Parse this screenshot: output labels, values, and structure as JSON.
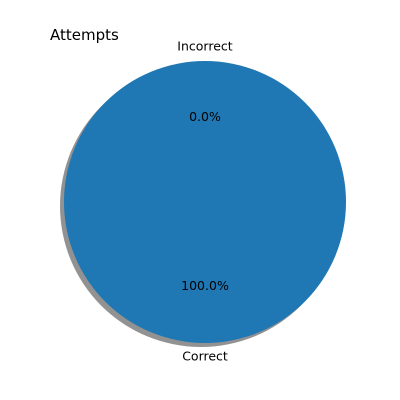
{
  "chart_data": {
    "type": "pie",
    "title": "Attempts",
    "slices": [
      {
        "label": "Correct",
        "value": 100.0,
        "percent_label": "100.0%",
        "color": "#1f77b4"
      },
      {
        "label": "Incorrect",
        "value": 0.0,
        "percent_label": "0.0%",
        "color": "#ff7f0e"
      }
    ],
    "shadow": true,
    "start_angle_deg": 90
  }
}
